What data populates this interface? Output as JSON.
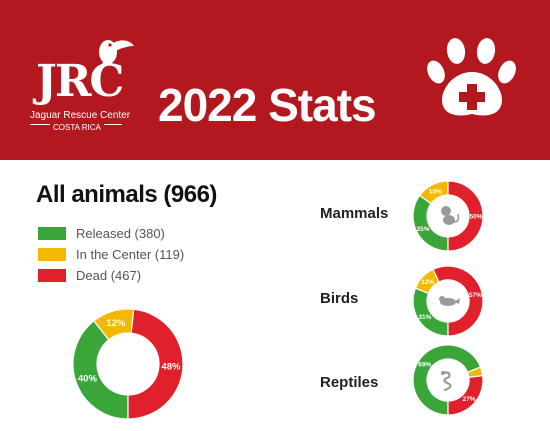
{
  "header": {
    "logo_letters": "JRC",
    "org_name": "Jaguar Rescue Center",
    "org_location": "COSTA RICA",
    "title": "2022 Stats",
    "paw_icon": "paw-medical-icon"
  },
  "colors": {
    "banner": "#b3181f",
    "released": "#3aa63a",
    "center": "#f5b800",
    "dead": "#e0202a"
  },
  "legend": [
    {
      "label": "Released (380)",
      "color": "#3aa63a"
    },
    {
      "label": "In the Center (119)",
      "color": "#f5b800"
    },
    {
      "label": "Dead (467)",
      "color": "#e0202a"
    }
  ],
  "chart_data": [
    {
      "type": "pie",
      "title": "All animals (966)",
      "categories": [
        "Released",
        "In the Center",
        "Dead"
      ],
      "values": [
        380,
        119,
        467
      ],
      "labels": [
        "40%",
        "12%",
        "48%"
      ]
    },
    {
      "type": "pie",
      "title": "Mammals",
      "icon": "monkey-icon",
      "categories": [
        "Released",
        "In the Center",
        "Dead"
      ],
      "values": [
        35,
        15,
        50
      ],
      "labels": [
        "35%",
        "15%",
        "50%"
      ]
    },
    {
      "type": "pie",
      "title": "Birds",
      "icon": "bird-icon",
      "categories": [
        "Released",
        "In the Center",
        "Dead"
      ],
      "values": [
        31,
        12,
        57
      ],
      "labels": [
        "31%",
        "12%",
        "57%"
      ]
    },
    {
      "type": "pie",
      "title": "Reptiles",
      "icon": "snake-icon",
      "categories": [
        "Released",
        "In the Center",
        "Dead"
      ],
      "values": [
        69,
        4,
        27
      ],
      "labels": [
        "69%",
        "",
        "27%"
      ]
    }
  ]
}
